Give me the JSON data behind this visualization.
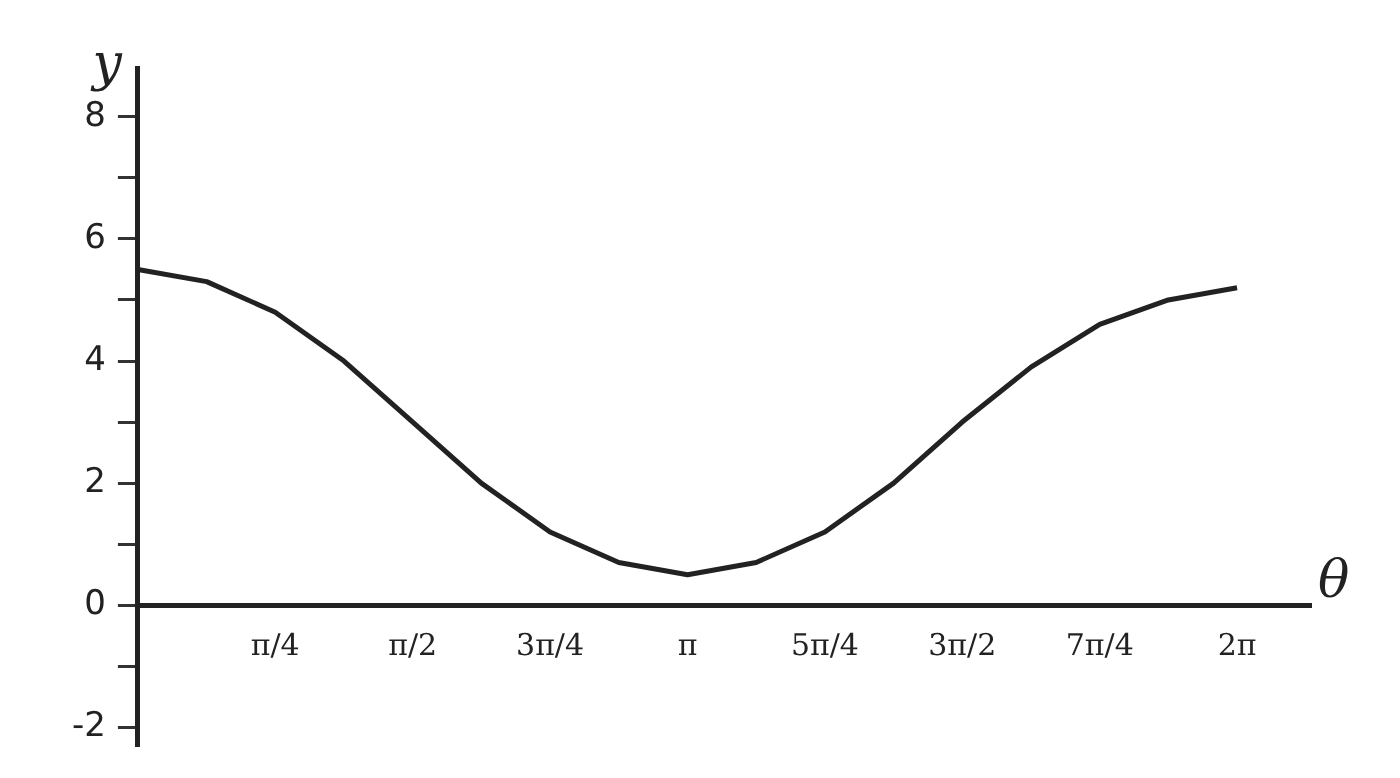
{
  "chart_data": {
    "type": "line",
    "xlabel": "θ",
    "ylabel": "y",
    "x": [
      0,
      0.393,
      0.785,
      1.178,
      1.571,
      1.963,
      2.356,
      2.749,
      3.142,
      3.534,
      3.927,
      4.32,
      4.712,
      5.105,
      5.498,
      5.89,
      6.283
    ],
    "series": [
      {
        "color": "#222222",
        "values": [
          5.5,
          5.3,
          4.8,
          4.0,
          3.0,
          2.0,
          1.2,
          0.7,
          0.5,
          0.7,
          1.2,
          2.0,
          3.0,
          3.9,
          4.6,
          5.0,
          5.2
        ]
      }
    ],
    "xlim": [
      0,
      6.7
    ],
    "ylim": [
      -2.3,
      8.8
    ],
    "xticks": [
      {
        "value": 0.785,
        "label": "π/4"
      },
      {
        "value": 1.571,
        "label": "π/2"
      },
      {
        "value": 2.356,
        "label": "3π/4"
      },
      {
        "value": 3.142,
        "label": "π"
      },
      {
        "value": 3.927,
        "label": "5π/4"
      },
      {
        "value": 4.712,
        "label": "3π/2"
      },
      {
        "value": 5.498,
        "label": "7π/4"
      },
      {
        "value": 6.283,
        "label": "2π"
      }
    ],
    "yticks": [
      -2,
      {
        "value": -1,
        "label": null
      },
      0,
      {
        "value": 1,
        "label": null
      },
      2,
      {
        "value": 3,
        "label": null
      },
      4,
      {
        "value": 5,
        "label": null
      },
      6,
      {
        "value": 7,
        "label": null
      },
      8
    ],
    "grid": false,
    "legend": false,
    "marker": "none",
    "line_style": "solid"
  }
}
